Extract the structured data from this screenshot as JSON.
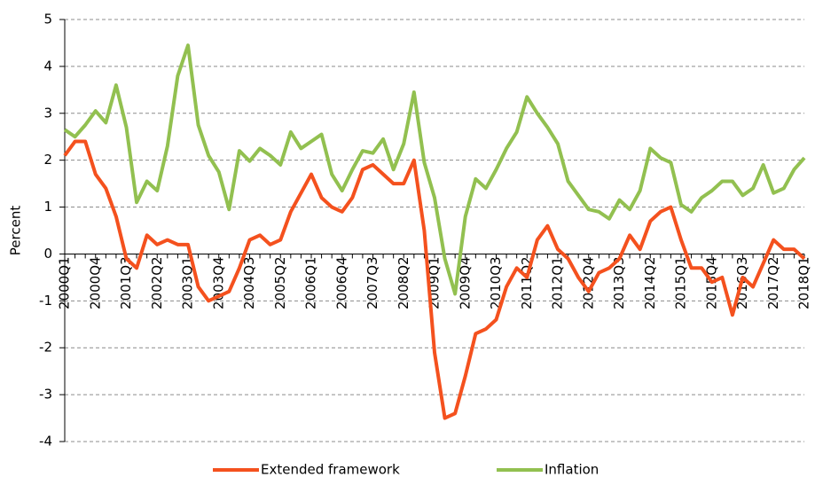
{
  "chart_data": {
    "type": "line",
    "y_label": "Percent",
    "categories": [
      "2000Q1",
      null,
      null,
      "2000Q4",
      null,
      null,
      "2001Q3",
      null,
      null,
      "2002Q2",
      null,
      null,
      "2003Q1",
      null,
      null,
      "2003Q4",
      null,
      null,
      "2004Q3",
      null,
      null,
      "2005Q2",
      null,
      null,
      "2006Q1",
      null,
      null,
      "2006Q4",
      null,
      null,
      "2007Q3",
      null,
      null,
      "2008Q2",
      null,
      null,
      "2009Q1",
      null,
      null,
      "2009Q4",
      null,
      null,
      "2010Q3",
      null,
      null,
      "2011Q2",
      null,
      null,
      "2012Q1",
      null,
      null,
      "2012Q4",
      null,
      null,
      "2013Q3",
      null,
      null,
      "2014Q2",
      null,
      null,
      "2015Q1",
      null,
      null,
      "2015Q4",
      null,
      null,
      "2016Q3",
      null,
      null,
      "2017Q2",
      null,
      null,
      "2018Q1"
    ],
    "series": [
      {
        "name": "Extended framework",
        "color": "#f4511e",
        "values": [
          2.1,
          2.4,
          2.4,
          1.7,
          1.4,
          0.8,
          -0.1,
          -0.3,
          0.4,
          0.2,
          0.3,
          0.2,
          0.2,
          -0.7,
          -1.0,
          -0.9,
          -0.8,
          -0.3,
          0.3,
          0.4,
          0.2,
          0.3,
          0.9,
          1.3,
          1.7,
          1.2,
          1.0,
          0.9,
          1.2,
          1.8,
          1.9,
          1.7,
          1.5,
          1.5,
          2.0,
          0.5,
          -2.1,
          -3.5,
          -3.4,
          -2.6,
          -1.7,
          -1.6,
          -1.4,
          -0.7,
          -0.3,
          -0.5,
          0.3,
          0.6,
          0.1,
          -0.1,
          -0.5,
          -0.8,
          -0.4,
          -0.3,
          -0.1,
          0.4,
          0.1,
          0.7,
          0.9,
          1.0,
          0.3,
          -0.3,
          -0.3,
          -0.6,
          -0.5,
          -1.3,
          -0.5,
          -0.7,
          -0.2,
          0.3,
          0.1,
          0.1,
          -0.1
        ]
      },
      {
        "name": "Inflation",
        "color": "#92c050",
        "values": [
          2.65,
          2.5,
          2.75,
          3.05,
          2.8,
          3.6,
          2.7,
          1.1,
          1.55,
          1.35,
          2.3,
          3.8,
          4.45,
          2.75,
          2.1,
          1.75,
          0.95,
          2.2,
          1.98,
          2.25,
          2.1,
          1.9,
          2.6,
          2.25,
          2.4,
          2.55,
          1.7,
          1.35,
          1.8,
          2.2,
          2.15,
          2.45,
          1.8,
          2.35,
          3.45,
          1.95,
          1.2,
          -0.1,
          -0.85,
          0.8,
          1.6,
          1.4,
          1.8,
          2.25,
          2.6,
          3.35,
          3.0,
          2.7,
          2.35,
          1.55,
          1.25,
          0.95,
          0.9,
          0.75,
          1.15,
          0.95,
          1.35,
          2.25,
          2.05,
          1.95,
          1.05,
          0.9,
          1.2,
          1.35,
          1.55,
          1.55,
          1.25,
          1.4,
          1.9,
          1.3,
          1.4,
          1.8,
          2.05
        ]
      }
    ],
    "ylim": [
      -4,
      5
    ],
    "yticks": [
      -4,
      -3,
      -2,
      -1,
      0,
      1,
      2,
      3,
      4,
      5
    ],
    "grid": true,
    "legend": "bottom"
  }
}
